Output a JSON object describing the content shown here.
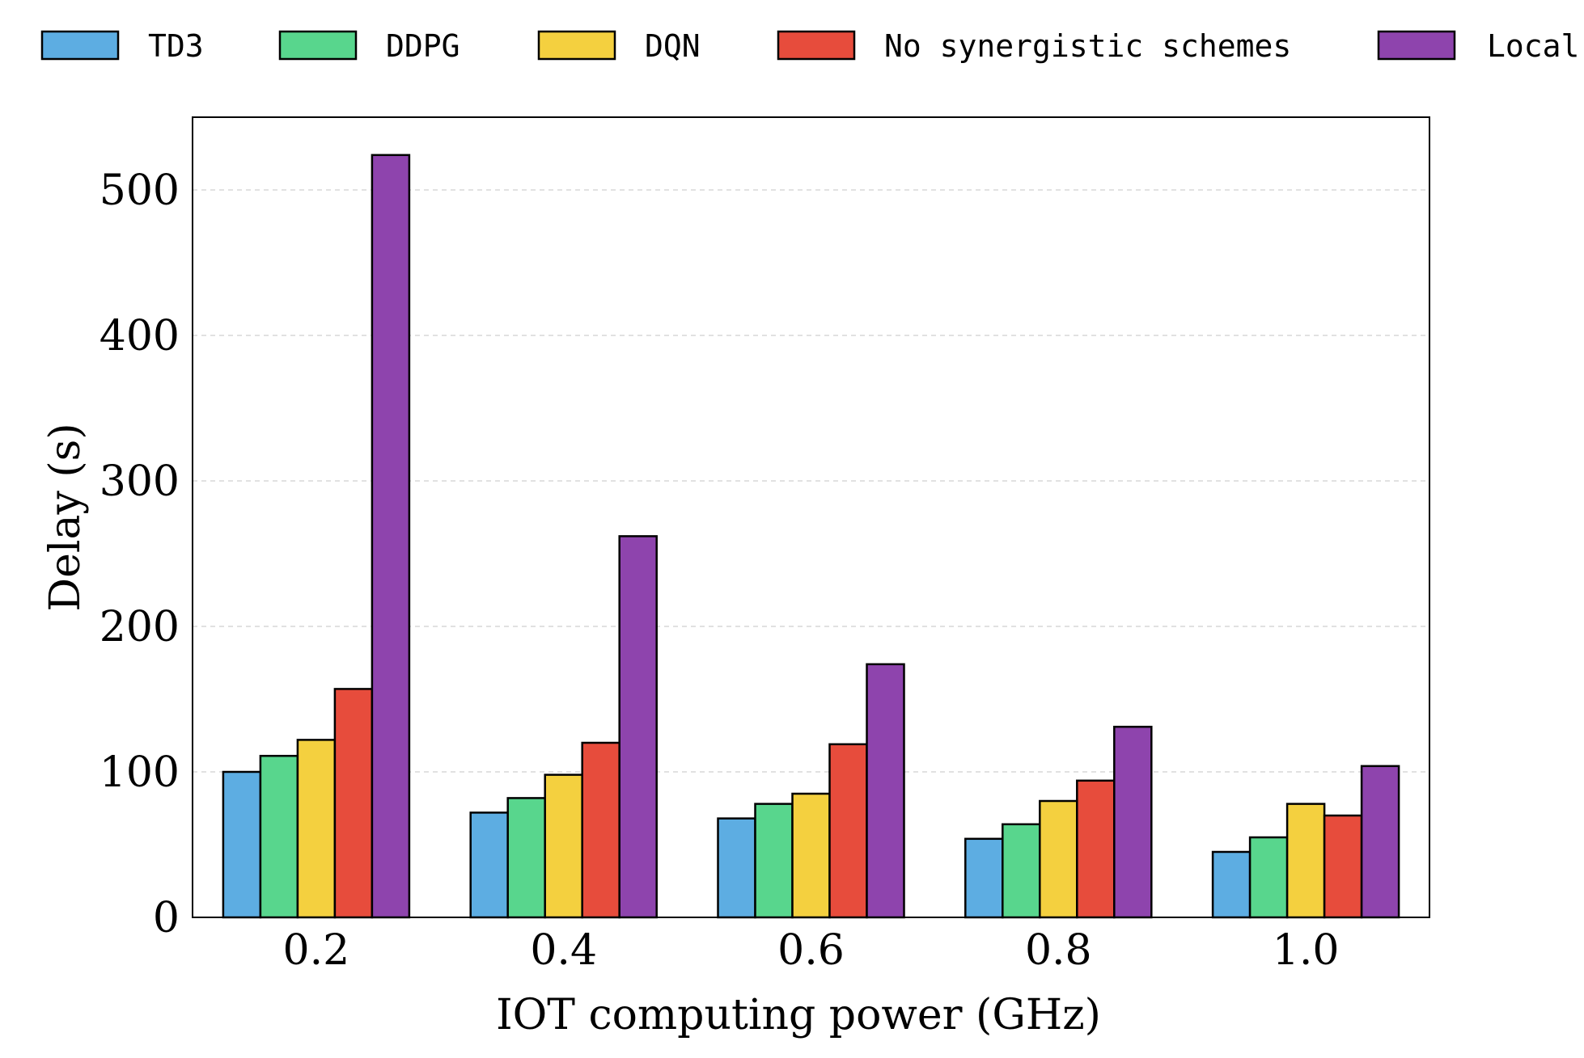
{
  "chart_data": {
    "type": "bar",
    "title": "",
    "xlabel": "IOT computing power (GHz)",
    "ylabel": "Delay (s)",
    "categories": [
      "0.2",
      "0.4",
      "0.6",
      "0.8",
      "1.0"
    ],
    "ylim": [
      0,
      550
    ],
    "yticks": [
      "0",
      "100",
      "200",
      "300",
      "400",
      "500"
    ],
    "grid": "horizontal dashed",
    "legend_position": "top",
    "series": [
      {
        "name": "TD3",
        "color": "#5DADE2",
        "values": [
          100,
          72,
          68,
          54,
          45
        ]
      },
      {
        "name": "DDPG",
        "color": "#58D68D",
        "values": [
          111,
          82,
          78,
          64,
          55
        ]
      },
      {
        "name": "DQN",
        "color": "#F4D03F",
        "values": [
          122,
          98,
          85,
          80,
          78
        ]
      },
      {
        "name": "No synergistic schemes",
        "color": "#E74C3C",
        "values": [
          157,
          120,
          119,
          94,
          70
        ]
      },
      {
        "name": "Local",
        "color": "#8E44AD",
        "values": [
          524,
          262,
          174,
          131,
          104
        ]
      }
    ]
  }
}
